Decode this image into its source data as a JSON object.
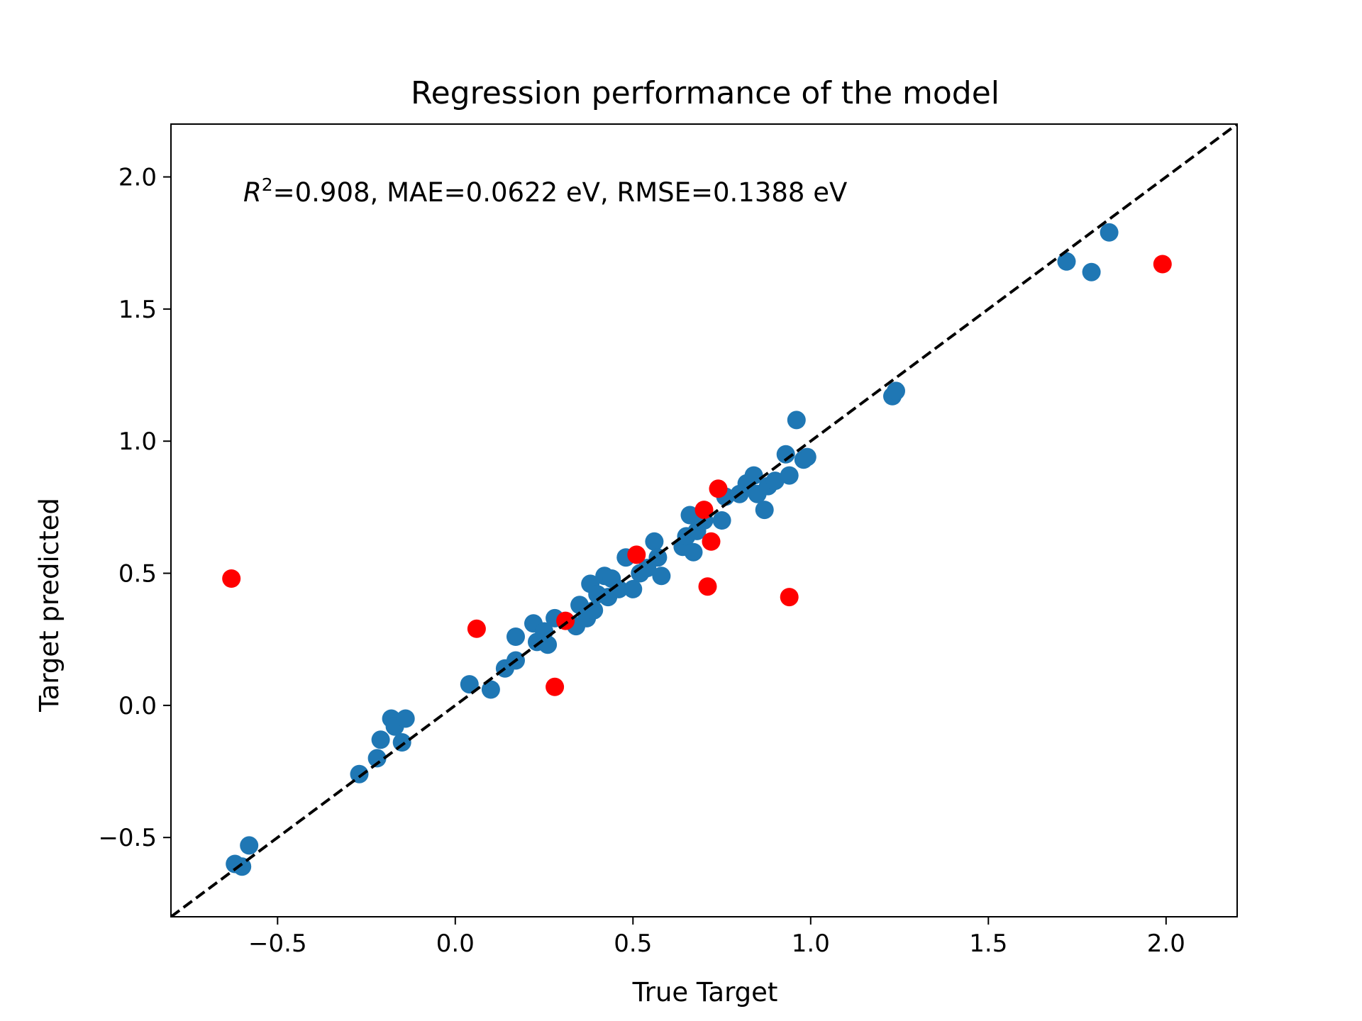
{
  "chart_data": {
    "type": "scatter",
    "title": "Regression performance of the model",
    "xlabel": "True Target",
    "ylabel": "Target predicted",
    "annotation": {
      "r2_symbol": "R",
      "r2_exponent": "2",
      "rest": "=0.908, MAE=0.0622 eV, RMSE=0.1388 eV"
    },
    "xlim": [
      -0.8,
      2.2
    ],
    "ylim": [
      -0.8,
      2.2
    ],
    "xticks": [
      {
        "value": -0.5,
        "label": "−0.5"
      },
      {
        "value": 0.0,
        "label": "0.0"
      },
      {
        "value": 0.5,
        "label": "0.5"
      },
      {
        "value": 1.0,
        "label": "1.0"
      },
      {
        "value": 1.5,
        "label": "1.5"
      },
      {
        "value": 2.0,
        "label": "2.0"
      }
    ],
    "yticks": [
      {
        "value": -0.5,
        "label": "−0.5"
      },
      {
        "value": 0.0,
        "label": "0.0"
      },
      {
        "value": 0.5,
        "label": "0.5"
      },
      {
        "value": 1.0,
        "label": "1.0"
      },
      {
        "value": 1.5,
        "label": "1.5"
      },
      {
        "value": 2.0,
        "label": "2.0"
      }
    ],
    "reference_line": {
      "style": "dashed",
      "color": "#000000"
    },
    "grid": false,
    "series": [
      {
        "color": "#1f77b4",
        "points": [
          [
            -0.62,
            -0.6
          ],
          [
            -0.6,
            -0.61
          ],
          [
            -0.58,
            -0.53
          ],
          [
            -0.27,
            -0.26
          ],
          [
            -0.22,
            -0.2
          ],
          [
            -0.21,
            -0.13
          ],
          [
            -0.18,
            -0.05
          ],
          [
            -0.17,
            -0.08
          ],
          [
            -0.15,
            -0.14
          ],
          [
            -0.14,
            -0.05
          ],
          [
            0.04,
            0.08
          ],
          [
            0.1,
            0.06
          ],
          [
            0.14,
            0.14
          ],
          [
            0.17,
            0.17
          ],
          [
            0.17,
            0.26
          ],
          [
            0.22,
            0.31
          ],
          [
            0.23,
            0.24
          ],
          [
            0.25,
            0.28
          ],
          [
            0.26,
            0.23
          ],
          [
            0.28,
            0.33
          ],
          [
            0.34,
            0.3
          ],
          [
            0.35,
            0.38
          ],
          [
            0.37,
            0.33
          ],
          [
            0.38,
            0.46
          ],
          [
            0.39,
            0.36
          ],
          [
            0.4,
            0.42
          ],
          [
            0.42,
            0.49
          ],
          [
            0.43,
            0.41
          ],
          [
            0.44,
            0.48
          ],
          [
            0.46,
            0.44
          ],
          [
            0.48,
            0.56
          ],
          [
            0.5,
            0.44
          ],
          [
            0.52,
            0.5
          ],
          [
            0.54,
            0.52
          ],
          [
            0.56,
            0.62
          ],
          [
            0.57,
            0.56
          ],
          [
            0.58,
            0.49
          ],
          [
            0.64,
            0.6
          ],
          [
            0.65,
            0.64
          ],
          [
            0.66,
            0.72
          ],
          [
            0.67,
            0.58
          ],
          [
            0.68,
            0.66
          ],
          [
            0.7,
            0.7
          ],
          [
            0.75,
            0.7
          ],
          [
            0.76,
            0.79
          ],
          [
            0.8,
            0.8
          ],
          [
            0.82,
            0.84
          ],
          [
            0.84,
            0.87
          ],
          [
            0.85,
            0.8
          ],
          [
            0.87,
            0.74
          ],
          [
            0.88,
            0.83
          ],
          [
            0.9,
            0.85
          ],
          [
            0.93,
            0.95
          ],
          [
            0.94,
            0.87
          ],
          [
            0.96,
            1.08
          ],
          [
            0.98,
            0.93
          ],
          [
            0.99,
            0.94
          ],
          [
            1.23,
            1.17
          ],
          [
            1.24,
            1.19
          ],
          [
            1.72,
            1.68
          ],
          [
            1.79,
            1.64
          ],
          [
            1.84,
            1.79
          ]
        ]
      },
      {
        "color": "#ff0000",
        "points": [
          [
            -0.63,
            0.48
          ],
          [
            0.06,
            0.29
          ],
          [
            0.28,
            0.07
          ],
          [
            0.31,
            0.32
          ],
          [
            0.51,
            0.57
          ],
          [
            0.7,
            0.74
          ],
          [
            0.71,
            0.45
          ],
          [
            0.72,
            0.62
          ],
          [
            0.74,
            0.82
          ],
          [
            0.94,
            0.41
          ],
          [
            1.99,
            1.67
          ]
        ]
      }
    ]
  }
}
